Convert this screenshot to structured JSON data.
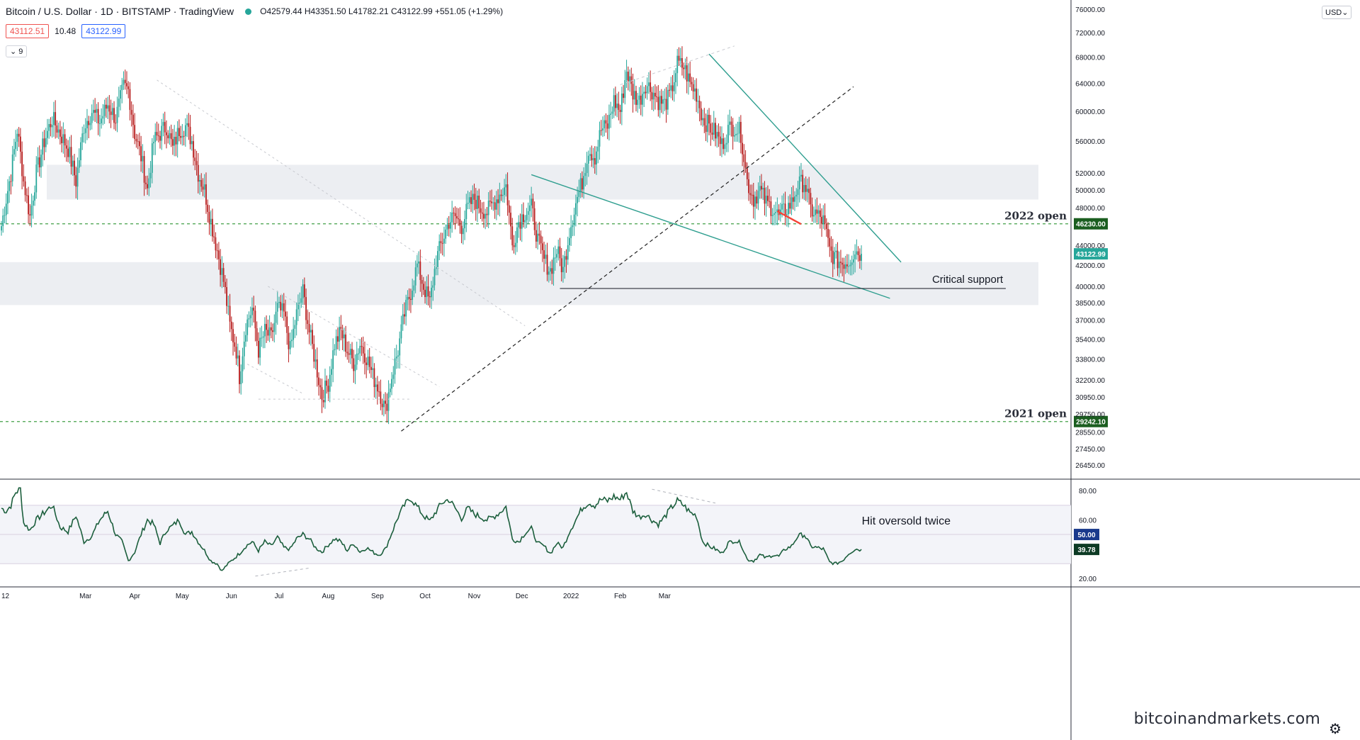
{
  "header": {
    "title": "Bitcoin / U.S. Dollar · 1D · BITSTAMP · TradingView",
    "ohlc": "O42579.44 H43351.50 L41782.21 C43122.99 +551.05 (+1.29%)",
    "sell_price": "43112.51",
    "spread": "10.48",
    "buy_price": "43122.99",
    "indicator_count": "9",
    "currency": "USD"
  },
  "watermark": "bitcoinandmarkets.com",
  "colors": {
    "up": "#26a69a",
    "down": "#b71c1c",
    "zone": "#eceef2",
    "green_dashed": "#43a047",
    "teal_line": "#2e9e8f",
    "rsi_line": "#1b5e3c",
    "annotation_red": "#f44336"
  },
  "chart_data": [
    {
      "type": "candlestick",
      "title": "Bitcoin / U.S. Dollar · 1D · BITSTAMP",
      "x_ticks": [
        "12",
        "Mar",
        "Apr",
        "May",
        "Jun",
        "Jul",
        "Aug",
        "Sep",
        "Oct",
        "Nov",
        "Dec",
        "2022",
        "Feb",
        "Mar"
      ],
      "y_ticks": [
        76000,
        72000,
        68000,
        64000,
        60000,
        56000,
        52000,
        50000,
        48000,
        44000,
        42000,
        40000,
        38500,
        37000,
        35400,
        33800,
        32200,
        30950,
        29750,
        28550,
        27450,
        26450
      ],
      "y_tick_labels": [
        "76000.00",
        "72000.00",
        "68000.00",
        "64000.00",
        "60000.00",
        "56000.00",
        "52000.00",
        "50000.00",
        "48000.00",
        "44000.00",
        "42000.00",
        "40000.00",
        "38500.00",
        "37000.00",
        "35400.00",
        "33800.00",
        "32200.00",
        "30950.00",
        "29750.00",
        "28550.00",
        "27450.00",
        "26450.00"
      ],
      "scale": "log",
      "ylim": [
        25800,
        77000
      ],
      "last_price": 43122.99,
      "last_price_label": "43122.99",
      "horizontal_levels": [
        {
          "label": "2022 open",
          "value": 46230.0,
          "value_label": "46230.00"
        },
        {
          "label": "2021 open",
          "value": 29242.1,
          "value_label": "29242.10"
        }
      ],
      "zones": [
        {
          "from": 48900,
          "to": 53000
        },
        {
          "from": 38300,
          "to": 42300
        }
      ],
      "annotations": [
        "Critical support"
      ],
      "swing_path": [
        [
          0,
          46000
        ],
        [
          6,
          52000
        ],
        [
          10,
          57500
        ],
        [
          14,
          51000
        ],
        [
          18,
          47000
        ],
        [
          22,
          52000
        ],
        [
          27,
          56000
        ],
        [
          32,
          59000
        ],
        [
          37,
          57000
        ],
        [
          42,
          55000
        ],
        [
          47,
          51000
        ],
        [
          52,
          58000
        ],
        [
          57,
          60000
        ],
        [
          62,
          58500
        ],
        [
          67,
          61000
        ],
        [
          72,
          59000
        ],
        [
          77,
          63500
        ],
        [
          80,
          63000
        ],
        [
          84,
          57000
        ],
        [
          88,
          54000
        ],
        [
          92,
          50000
        ],
        [
          96,
          56000
        ],
        [
          100,
          57000
        ],
        [
          104,
          58000
        ],
        [
          108,
          55000
        ],
        [
          112,
          57500
        ],
        [
          116,
          58000
        ],
        [
          120,
          56000
        ],
        [
          124,
          52000
        ],
        [
          128,
          50000
        ],
        [
          132,
          46500
        ],
        [
          136,
          43500
        ],
        [
          140,
          40500
        ],
        [
          144,
          36500
        ],
        [
          148,
          34500
        ],
        [
          150,
          32500
        ],
        [
          154,
          36500
        ],
        [
          158,
          38000
        ],
        [
          162,
          34500
        ],
        [
          166,
          36000
        ],
        [
          170,
          35500
        ],
        [
          174,
          38000
        ],
        [
          178,
          37500
        ],
        [
          182,
          34500
        ],
        [
          186,
          37500
        ],
        [
          190,
          39500
        ],
        [
          194,
          36000
        ],
        [
          198,
          33500
        ],
        [
          202,
          31000
        ],
        [
          206,
          32000
        ],
        [
          210,
          35000
        ],
        [
          214,
          36000
        ],
        [
          218,
          34500
        ],
        [
          222,
          33500
        ],
        [
          226,
          35000
        ],
        [
          230,
          34000
        ],
        [
          234,
          32500
        ],
        [
          238,
          31500
        ],
        [
          242,
          30000
        ],
        [
          246,
          32500
        ],
        [
          250,
          34500
        ],
        [
          254,
          37500
        ],
        [
          258,
          39500
        ],
        [
          262,
          42000
        ],
        [
          266,
          40000
        ],
        [
          270,
          38500
        ],
        [
          274,
          42500
        ],
        [
          278,
          44500
        ],
        [
          282,
          46500
        ],
        [
          286,
          47000
        ],
        [
          290,
          46000
        ],
        [
          294,
          48000
        ],
        [
          298,
          49000
        ],
        [
          302,
          48000
        ],
        [
          306,
          47500
        ],
        [
          310,
          48500
        ],
        [
          314,
          49500
        ],
        [
          318,
          50500
        ],
        [
          322,
          44000
        ],
        [
          326,
          46500
        ],
        [
          330,
          47500
        ],
        [
          334,
          48000
        ],
        [
          338,
          44500
        ],
        [
          342,
          42500
        ],
        [
          346,
          41500
        ],
        [
          350,
          43500
        ],
        [
          354,
          41500
        ],
        [
          358,
          45500
        ],
        [
          362,
          48500
        ],
        [
          366,
          51000
        ],
        [
          370,
          55000
        ],
        [
          374,
          54000
        ],
        [
          378,
          57500
        ],
        [
          382,
          58000
        ],
        [
          386,
          61500
        ],
        [
          390,
          60000
        ],
        [
          394,
          66000
        ],
        [
          398,
          62500
        ],
        [
          402,
          61500
        ],
        [
          406,
          64000
        ],
        [
          410,
          63000
        ],
        [
          414,
          61500
        ],
        [
          418,
          61000
        ],
        [
          422,
          62500
        ],
        [
          426,
          67000
        ],
        [
          430,
          66500
        ],
        [
          434,
          64000
        ],
        [
          438,
          62500
        ],
        [
          442,
          59000
        ],
        [
          446,
          58000
        ],
        [
          450,
          57000
        ],
        [
          454,
          55500
        ],
        [
          458,
          57500
        ],
        [
          462,
          58000
        ],
        [
          466,
          57000
        ],
        [
          470,
          51000
        ],
        [
          474,
          49000
        ],
        [
          478,
          50000
        ],
        [
          482,
          48500
        ],
        [
          486,
          48000
        ],
        [
          490,
          47000
        ],
        [
          494,
          47800
        ],
        [
          498,
          48500
        ],
        [
          502,
          50500
        ],
        [
          506,
          51000
        ],
        [
          510,
          47800
        ],
        [
          514,
          47200
        ],
        [
          518,
          46500
        ],
        [
          522,
          43500
        ],
        [
          526,
          42500
        ],
        [
          530,
          42300
        ],
        [
          534,
          42400
        ],
        [
          538,
          43500
        ],
        [
          542,
          43100
        ]
      ],
      "bar_count": 543
    },
    {
      "type": "line",
      "title": "RSI",
      "y_ticks": [
        80,
        60,
        50,
        20
      ],
      "y_tick_labels": [
        "80.00",
        "60.00",
        "50.00",
        "20.00"
      ],
      "ylim": [
        18,
        84
      ],
      "bands": {
        "upper": 70,
        "middle": 50,
        "lower": 30
      },
      "last_value": 39.78,
      "last_value_label": "39.78",
      "mid_label": "50.00",
      "annotation": "Hit oversold twice",
      "swing_path": [
        [
          0,
          68
        ],
        [
          3,
          66
        ],
        [
          6,
          70
        ],
        [
          9,
          79
        ],
        [
          12,
          81
        ],
        [
          14,
          58
        ],
        [
          18,
          53
        ],
        [
          22,
          60
        ],
        [
          27,
          65
        ],
        [
          32,
          70
        ],
        [
          37,
          55
        ],
        [
          42,
          52
        ],
        [
          47,
          63
        ],
        [
          52,
          45
        ],
        [
          57,
          49
        ],
        [
          62,
          60
        ],
        [
          67,
          66
        ],
        [
          72,
          50
        ],
        [
          76,
          45
        ],
        [
          80,
          32
        ],
        [
          84,
          38
        ],
        [
          88,
          50
        ],
        [
          92,
          60
        ],
        [
          96,
          57
        ],
        [
          100,
          44
        ],
        [
          104,
          53
        ],
        [
          108,
          56
        ],
        [
          112,
          60
        ],
        [
          116,
          50
        ],
        [
          120,
          52
        ],
        [
          124,
          45
        ],
        [
          128,
          39
        ],
        [
          132,
          32
        ],
        [
          136,
          30
        ],
        [
          139,
          25
        ],
        [
          142,
          29
        ],
        [
          146,
          33
        ],
        [
          150,
          37
        ],
        [
          154,
          42
        ],
        [
          158,
          45
        ],
        [
          162,
          39
        ],
        [
          166,
          45
        ],
        [
          170,
          42
        ],
        [
          174,
          48
        ],
        [
          178,
          41
        ],
        [
          182,
          40
        ],
        [
          186,
          47
        ],
        [
          190,
          50
        ],
        [
          194,
          47
        ],
        [
          198,
          41
        ],
        [
          202,
          38
        ],
        [
          206,
          43
        ],
        [
          210,
          47
        ],
        [
          214,
          45
        ],
        [
          218,
          39
        ],
        [
          222,
          44
        ],
        [
          226,
          38
        ],
        [
          230,
          41
        ],
        [
          234,
          38
        ],
        [
          238,
          36
        ],
        [
          242,
          40
        ],
        [
          246,
          51
        ],
        [
          250,
          62
        ],
        [
          254,
          70
        ],
        [
          258,
          75
        ],
        [
          262,
          69
        ],
        [
          266,
          63
        ],
        [
          270,
          59
        ],
        [
          274,
          66
        ],
        [
          278,
          72
        ],
        [
          282,
          74
        ],
        [
          286,
          68
        ],
        [
          290,
          61
        ],
        [
          294,
          68
        ],
        [
          298,
          64
        ],
        [
          302,
          62
        ],
        [
          306,
          60
        ],
        [
          310,
          62
        ],
        [
          314,
          65
        ],
        [
          318,
          69
        ],
        [
          322,
          47
        ],
        [
          326,
          45
        ],
        [
          330,
          51
        ],
        [
          334,
          54
        ],
        [
          338,
          44
        ],
        [
          342,
          42
        ],
        [
          346,
          37
        ],
        [
          350,
          44
        ],
        [
          354,
          41
        ],
        [
          358,
          52
        ],
        [
          362,
          60
        ],
        [
          366,
          68
        ],
        [
          370,
          72
        ],
        [
          374,
          70
        ],
        [
          378,
          74
        ],
        [
          382,
          73
        ],
        [
          386,
          76
        ],
        [
          390,
          74
        ],
        [
          394,
          79
        ],
        [
          398,
          66
        ],
        [
          402,
          62
        ],
        [
          406,
          64
        ],
        [
          410,
          60
        ],
        [
          414,
          57
        ],
        [
          418,
          62
        ],
        [
          422,
          68
        ],
        [
          426,
          73
        ],
        [
          430,
          70
        ],
        [
          434,
          65
        ],
        [
          438,
          63
        ],
        [
          442,
          45
        ],
        [
          446,
          42
        ],
        [
          450,
          40
        ],
        [
          454,
          37
        ],
        [
          458,
          44
        ],
        [
          462,
          46
        ],
        [
          466,
          44
        ],
        [
          470,
          33
        ],
        [
          474,
          32
        ],
        [
          478,
          36
        ],
        [
          482,
          34
        ],
        [
          486,
          36
        ],
        [
          490,
          35
        ],
        [
          494,
          40
        ],
        [
          498,
          42
        ],
        [
          502,
          49
        ],
        [
          506,
          50
        ],
        [
          510,
          42
        ],
        [
          514,
          41
        ],
        [
          518,
          40
        ],
        [
          522,
          31
        ],
        [
          526,
          30
        ],
        [
          530,
          32
        ],
        [
          534,
          37
        ],
        [
          538,
          40
        ],
        [
          542,
          39.78
        ]
      ]
    }
  ]
}
